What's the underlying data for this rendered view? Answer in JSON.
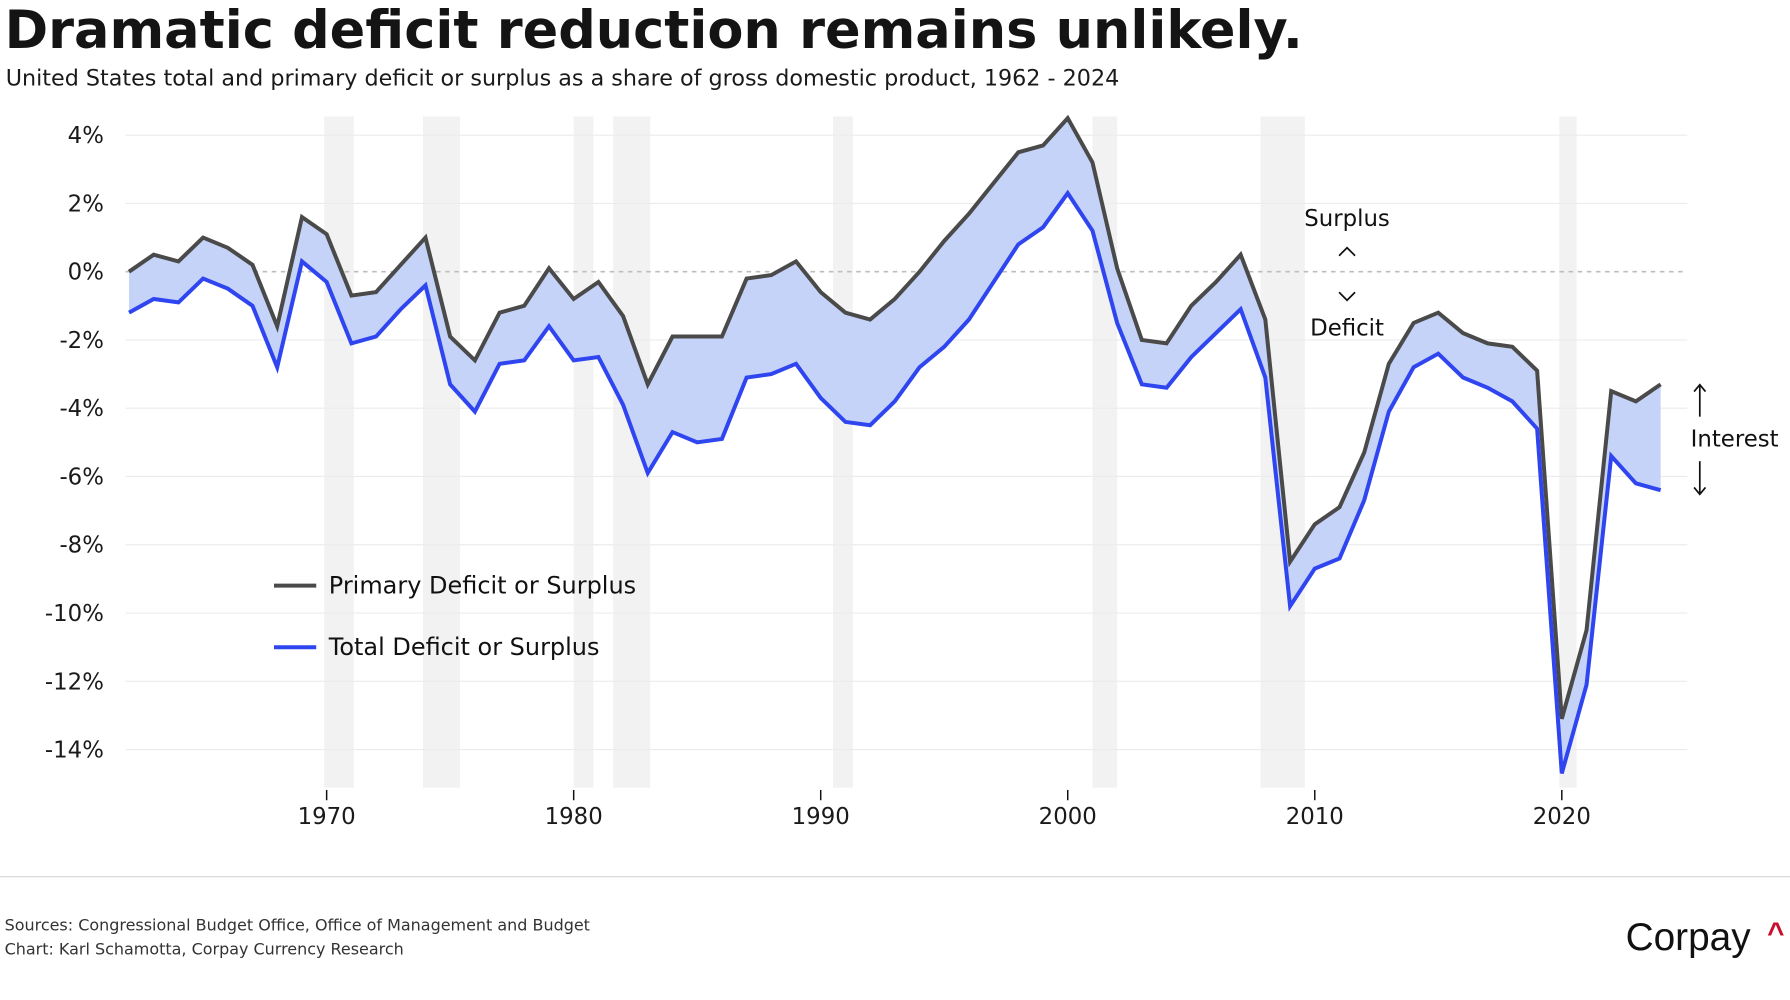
{
  "header": {
    "title": "Dramatic deficit reduction remains unlikely.",
    "subtitle": "United States total and primary deficit or surplus as a share of gross domestic product, 1962 - 2024"
  },
  "colors": {
    "primary_line": "#4a4a4a",
    "total_line": "#2f45f0",
    "interest_fill": "#c5d3f8",
    "recession_band": "#f2f2f2",
    "gridline": "#ececec",
    "zero_line": "#bdbdbd",
    "logo_accent": "#c8102e"
  },
  "chart_data": {
    "type": "area",
    "title": "Dramatic deficit reduction remains unlikely.",
    "subtitle": "United States total and primary deficit or surplus as a share of gross domestic product, 1962 - 2024",
    "xlabel": "",
    "ylabel": "",
    "xlim": [
      1962,
      2024
    ],
    "ylim": [
      -15.2,
      4.6
    ],
    "grid": true,
    "x_ticks": [
      1970,
      1980,
      1990,
      2000,
      2010,
      2020
    ],
    "x_tick_labels": [
      "1970",
      "1980",
      "1990",
      "2000",
      "2010",
      "2020"
    ],
    "y_ticks": [
      4,
      2,
      0,
      -2,
      -4,
      -6,
      -8,
      -10,
      -12,
      -14
    ],
    "y_tick_labels": [
      "4%",
      "2%",
      "0%",
      "-2%",
      "-4%",
      "-6%",
      "-8%",
      "-10%",
      "-12%",
      "-14%"
    ],
    "x": [
      1962,
      1963,
      1964,
      1965,
      1966,
      1967,
      1968,
      1969,
      1970,
      1971,
      1972,
      1973,
      1974,
      1975,
      1976,
      1977,
      1978,
      1979,
      1980,
      1981,
      1982,
      1983,
      1984,
      1985,
      1986,
      1987,
      1988,
      1989,
      1990,
      1991,
      1992,
      1993,
      1994,
      1995,
      1996,
      1997,
      1998,
      1999,
      2000,
      2001,
      2002,
      2003,
      2004,
      2005,
      2006,
      2007,
      2008,
      2009,
      2010,
      2011,
      2012,
      2013,
      2014,
      2015,
      2016,
      2017,
      2018,
      2019,
      2020,
      2021,
      2022,
      2023,
      2024
    ],
    "series": [
      {
        "name": "Primary Deficit or Surplus",
        "values": [
          0.0,
          0.5,
          0.3,
          1.0,
          0.7,
          0.2,
          -1.6,
          1.6,
          1.1,
          -0.7,
          -0.6,
          0.2,
          1.0,
          -1.9,
          -2.6,
          -1.2,
          -1.0,
          0.1,
          -0.8,
          -0.3,
          -1.3,
          -3.3,
          -1.9,
          -1.9,
          -1.9,
          -0.2,
          -0.1,
          0.3,
          -0.6,
          -1.2,
          -1.4,
          -0.8,
          0.0,
          0.9,
          1.7,
          2.6,
          3.5,
          3.7,
          4.5,
          3.2,
          0.1,
          -2.0,
          -2.1,
          -1.0,
          -0.3,
          0.5,
          -1.4,
          -8.5,
          -7.4,
          -6.9,
          -5.3,
          -2.7,
          -1.5,
          -1.2,
          -1.8,
          -2.1,
          -2.2,
          -2.9,
          -13.1,
          -10.5,
          -3.5,
          -3.8,
          -3.3
        ]
      },
      {
        "name": "Total Deficit or Surplus",
        "values": [
          -1.2,
          -0.8,
          -0.9,
          -0.2,
          -0.5,
          -1.0,
          -2.8,
          0.3,
          -0.3,
          -2.1,
          -1.9,
          -1.1,
          -0.4,
          -3.3,
          -4.1,
          -2.7,
          -2.6,
          -1.6,
          -2.6,
          -2.5,
          -3.9,
          -5.9,
          -4.7,
          -5.0,
          -4.9,
          -3.1,
          -3.0,
          -2.7,
          -3.7,
          -4.4,
          -4.5,
          -3.8,
          -2.8,
          -2.2,
          -1.4,
          -0.3,
          0.8,
          1.3,
          2.3,
          1.2,
          -1.5,
          -3.3,
          -3.4,
          -2.5,
          -1.8,
          -1.1,
          -3.1,
          -9.8,
          -8.7,
          -8.4,
          -6.7,
          -4.1,
          -2.8,
          -2.4,
          -3.1,
          -3.4,
          -3.8,
          -4.6,
          -14.7,
          -12.1,
          -5.4,
          -6.2,
          -6.4
        ]
      }
    ],
    "shaded_region_between_series": "Interest",
    "recession_bands": [
      [
        1969.9,
        1971.1
      ],
      [
        1973.9,
        1975.4
      ],
      [
        1980.0,
        1980.8
      ],
      [
        1981.6,
        1983.1
      ],
      [
        1990.5,
        1991.3
      ],
      [
        2001.0,
        2002.0
      ],
      [
        2007.8,
        2009.6
      ],
      [
        2019.9,
        2020.6
      ]
    ],
    "legend": {
      "placement": "lower-left",
      "entries": [
        "Primary Deficit or Surplus",
        "Total Deficit or Surplus"
      ]
    },
    "annotations": [
      {
        "text": "Surplus",
        "arrow": "up"
      },
      {
        "text": "Deficit",
        "arrow": "down"
      },
      {
        "text": "Interest",
        "arrow": "both"
      }
    ]
  },
  "footer": {
    "sources": "Sources: Congressional Budget Office, Office of Management and Budget",
    "credit": "Chart: Karl Schamotta, Corpay Currency Research",
    "logo_text": "Corpay",
    "logo_mark": "^"
  }
}
